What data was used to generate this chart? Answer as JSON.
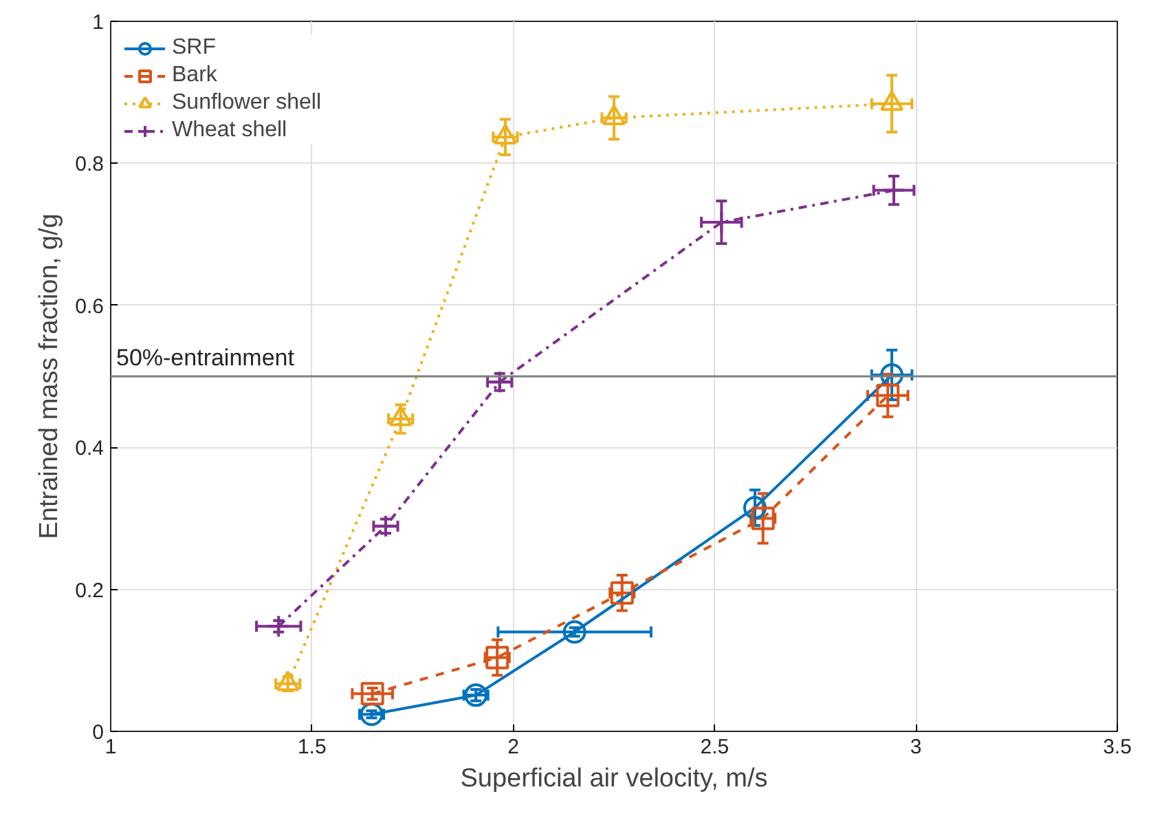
{
  "chart_data": {
    "type": "line",
    "xlabel": "Superficial air velocity, m/s",
    "ylabel": "Entrained mass fraction, g/g",
    "xlim": [
      1,
      3.5
    ],
    "xticks": [
      1,
      1.5,
      2,
      2.5,
      3,
      3.5
    ],
    "ylim": [
      0,
      1
    ],
    "yticks": [
      0,
      0.2,
      0.4,
      0.6,
      0.8,
      1
    ],
    "grid": true,
    "legend": "top left",
    "ref_lines": [
      {
        "axis": "y",
        "value": 0.5,
        "label": "50%-entrainment",
        "color": "#808080"
      }
    ],
    "series": [
      {
        "name": "SRF",
        "color": "#0072bd",
        "marker": "circle",
        "line_style": "solid",
        "x": [
          1.648,
          1.907,
          2.152,
          2.6,
          2.94
        ],
        "values": [
          0.024,
          0.051,
          0.14,
          0.315,
          0.502
        ],
        "errors": [
          0.005,
          0.008,
          0.006,
          0.025,
          0.035
        ],
        "xerrors": [
          0.03,
          0.03,
          0.19,
          null,
          0.05
        ]
      },
      {
        "name": "Bark",
        "color": "#d95319",
        "marker": "square",
        "line_style": "dashed",
        "x": [
          1.65,
          1.96,
          2.27,
          2.62,
          2.93
        ],
        "values": [
          0.053,
          0.104,
          0.195,
          0.3,
          0.473
        ],
        "errors": [
          0.008,
          0.025,
          0.025,
          0.035,
          0.03
        ],
        "xerrors": [
          0.05,
          0.03,
          0.03,
          0.03,
          0.05
        ]
      },
      {
        "name": "Sunflower shell",
        "color": "#edb120",
        "marker": "triangle",
        "line_style": "dotted",
        "x": [
          1.44,
          1.72,
          1.98,
          2.25,
          2.94
        ],
        "values": [
          0.067,
          0.44,
          0.837,
          0.864,
          0.884
        ],
        "errors": [
          0.01,
          0.02,
          0.025,
          0.03,
          0.04
        ],
        "xerrors": [
          0.03,
          0.03,
          0.03,
          0.03,
          0.05
        ]
      },
      {
        "name": "Wheat shell",
        "color": "#7e2f8e",
        "marker": "cross",
        "line_style": "dashdot",
        "x": [
          1.417,
          1.683,
          1.966,
          2.517,
          2.945
        ],
        "values": [
          0.148,
          0.289,
          0.492,
          0.717,
          0.762
        ],
        "errors": [
          0.008,
          0.01,
          0.012,
          0.03,
          0.02
        ],
        "xerrors": [
          0.055,
          0.03,
          0.03,
          0.05,
          0.05
        ]
      }
    ]
  }
}
